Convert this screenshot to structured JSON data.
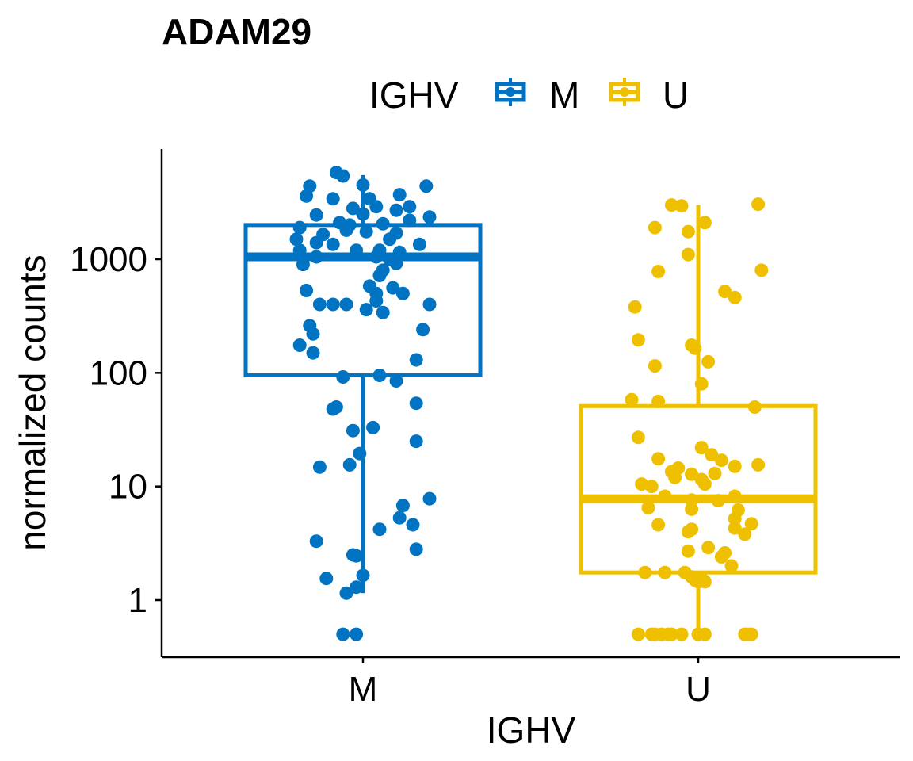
{
  "chart_data": {
    "type": "boxplot",
    "title": "ADAM29",
    "xlabel": "IGHV",
    "ylabel": "normalized counts",
    "y_scale": "log10",
    "ylim": [
      0.4,
      8000
    ],
    "y_ticks": [
      1,
      10,
      100,
      1000
    ],
    "y_tick_labels": [
      "1",
      "10",
      "100",
      "1000"
    ],
    "categories": [
      "M",
      "U"
    ],
    "legend": {
      "title": "IGHV",
      "position": "top",
      "entries": [
        "M",
        "U"
      ]
    },
    "grid": false,
    "colors": {
      "M": "#0073C2",
      "U": "#EFC000"
    },
    "boxes": [
      {
        "category": "M",
        "whisker_low": 1.15,
        "q1": 95,
        "median": 1050,
        "q3": 2000,
        "whisker_high": 5500
      },
      {
        "category": "U",
        "whisker_low": 0.5,
        "q1": 1.75,
        "median": 7.8,
        "q3": 51,
        "whisker_high": 3000
      }
    ],
    "points": {
      "M": [
        {
          "x": -0.08,
          "y": 5800
        },
        {
          "x": -0.06,
          "y": 5400
        },
        {
          "x": 0.0,
          "y": 4500
        },
        {
          "x": -0.16,
          "y": 4400
        },
        {
          "x": 0.19,
          "y": 4400
        },
        {
          "x": -0.17,
          "y": 3600
        },
        {
          "x": 0.11,
          "y": 3700
        },
        {
          "x": -0.09,
          "y": 3400
        },
        {
          "x": 0.02,
          "y": 3400
        },
        {
          "x": 0.04,
          "y": 2900
        },
        {
          "x": 0.14,
          "y": 2900
        },
        {
          "x": -0.03,
          "y": 2800
        },
        {
          "x": 0.1,
          "y": 2700
        },
        {
          "x": -0.14,
          "y": 2450
        },
        {
          "x": 0.0,
          "y": 2500
        },
        {
          "x": 0.2,
          "y": 2350
        },
        {
          "x": 0.14,
          "y": 2200
        },
        {
          "x": -0.07,
          "y": 2100
        },
        {
          "x": -0.04,
          "y": 2000
        },
        {
          "x": 0.06,
          "y": 2050
        },
        {
          "x": -0.19,
          "y": 1900
        },
        {
          "x": -0.05,
          "y": 1800
        },
        {
          "x": 0.01,
          "y": 1750
        },
        {
          "x": 0.1,
          "y": 1700
        },
        {
          "x": -0.12,
          "y": 1650
        },
        {
          "x": -0.2,
          "y": 1500
        },
        {
          "x": 0.08,
          "y": 1500
        },
        {
          "x": -0.14,
          "y": 1400
        },
        {
          "x": -0.09,
          "y": 1350
        },
        {
          "x": 0.17,
          "y": 1350
        },
        {
          "x": -0.19,
          "y": 1200
        },
        {
          "x": -0.02,
          "y": 1200
        },
        {
          "x": 0.05,
          "y": 1200
        },
        {
          "x": 0.11,
          "y": 1150
        },
        {
          "x": -0.14,
          "y": 1050
        },
        {
          "x": 0.04,
          "y": 1050
        },
        {
          "x": 0.08,
          "y": 1000
        },
        {
          "x": -0.18,
          "y": 900
        },
        {
          "x": 0.1,
          "y": 920
        },
        {
          "x": 0.06,
          "y": 800
        },
        {
          "x": 0.05,
          "y": 720
        },
        {
          "x": 0.02,
          "y": 580
        },
        {
          "x": 0.09,
          "y": 560
        },
        {
          "x": -0.17,
          "y": 530
        },
        {
          "x": 0.04,
          "y": 500
        },
        {
          "x": 0.12,
          "y": 500
        },
        {
          "x": 0.04,
          "y": 430
        },
        {
          "x": -0.13,
          "y": 400
        },
        {
          "x": -0.09,
          "y": 400
        },
        {
          "x": -0.05,
          "y": 400
        },
        {
          "x": 0.2,
          "y": 400
        },
        {
          "x": 0.01,
          "y": 360
        },
        {
          "x": 0.06,
          "y": 340
        },
        {
          "x": -0.16,
          "y": 260
        },
        {
          "x": 0.18,
          "y": 240
        },
        {
          "x": -0.15,
          "y": 220
        },
        {
          "x": -0.19,
          "y": 175
        },
        {
          "x": -0.15,
          "y": 150
        },
        {
          "x": 0.16,
          "y": 130
        },
        {
          "x": 0.05,
          "y": 95
        },
        {
          "x": -0.06,
          "y": 92
        },
        {
          "x": 0.1,
          "y": 85
        },
        {
          "x": 0.16,
          "y": 54
        },
        {
          "x": -0.08,
          "y": 50
        },
        {
          "x": -0.09,
          "y": 48
        },
        {
          "x": 0.03,
          "y": 33
        },
        {
          "x": -0.03,
          "y": 31
        },
        {
          "x": 0.16,
          "y": 25
        },
        {
          "x": -0.01,
          "y": 19.5
        },
        {
          "x": -0.04,
          "y": 15.5
        },
        {
          "x": -0.13,
          "y": 14.8
        },
        {
          "x": 0.2,
          "y": 7.8
        },
        {
          "x": 0.12,
          "y": 6.8
        },
        {
          "x": 0.11,
          "y": 5.3
        },
        {
          "x": 0.15,
          "y": 4.6
        },
        {
          "x": 0.05,
          "y": 4.2
        },
        {
          "x": -0.14,
          "y": 3.3
        },
        {
          "x": 0.16,
          "y": 2.8
        },
        {
          "x": -0.03,
          "y": 2.5
        },
        {
          "x": -0.02,
          "y": 2.45
        },
        {
          "x": 0.0,
          "y": 1.65
        },
        {
          "x": -0.11,
          "y": 1.55
        },
        {
          "x": -0.02,
          "y": 1.3
        },
        {
          "x": -0.05,
          "y": 1.15
        },
        {
          "x": -0.06,
          "y": 0.5
        },
        {
          "x": -0.02,
          "y": 0.5
        }
      ],
      "U": [
        {
          "x": 0.18,
          "y": 3050
        },
        {
          "x": -0.08,
          "y": 3000
        },
        {
          "x": -0.05,
          "y": 2950
        },
        {
          "x": 0.02,
          "y": 2100
        },
        {
          "x": -0.13,
          "y": 1900
        },
        {
          "x": -0.03,
          "y": 1750
        },
        {
          "x": -0.03,
          "y": 1100
        },
        {
          "x": 0.19,
          "y": 800
        },
        {
          "x": -0.12,
          "y": 780
        },
        {
          "x": 0.08,
          "y": 520
        },
        {
          "x": 0.11,
          "y": 460
        },
        {
          "x": -0.19,
          "y": 380
        },
        {
          "x": -0.18,
          "y": 195
        },
        {
          "x": -0.02,
          "y": 175
        },
        {
          "x": -0.01,
          "y": 165
        },
        {
          "x": 0.03,
          "y": 125
        },
        {
          "x": -0.13,
          "y": 115
        },
        {
          "x": 0.01,
          "y": 80
        },
        {
          "x": -0.2,
          "y": 58
        },
        {
          "x": -0.12,
          "y": 56
        },
        {
          "x": 0.17,
          "y": 50
        },
        {
          "x": -0.18,
          "y": 27
        },
        {
          "x": 0.01,
          "y": 22
        },
        {
          "x": 0.04,
          "y": 19
        },
        {
          "x": -0.12,
          "y": 17.5
        },
        {
          "x": 0.07,
          "y": 17
        },
        {
          "x": -0.06,
          "y": 14.5
        },
        {
          "x": 0.11,
          "y": 15
        },
        {
          "x": 0.18,
          "y": 15.5
        },
        {
          "x": -0.08,
          "y": 13.5
        },
        {
          "x": -0.02,
          "y": 12.8
        },
        {
          "x": 0.05,
          "y": 13
        },
        {
          "x": -0.07,
          "y": 12
        },
        {
          "x": 0.01,
          "y": 11.5
        },
        {
          "x": -0.17,
          "y": 10.5
        },
        {
          "x": -0.14,
          "y": 10
        },
        {
          "x": 0.02,
          "y": 10.5
        },
        {
          "x": -0.1,
          "y": 8.2
        },
        {
          "x": 0.11,
          "y": 8.2
        },
        {
          "x": 0.06,
          "y": 7.5
        },
        {
          "x": -0.02,
          "y": 7.6
        },
        {
          "x": -0.15,
          "y": 6.5
        },
        {
          "x": -0.02,
          "y": 6.3
        },
        {
          "x": 0.12,
          "y": 6.2
        },
        {
          "x": 0.11,
          "y": 5.2
        },
        {
          "x": 0.16,
          "y": 4.7
        },
        {
          "x": -0.12,
          "y": 4.6
        },
        {
          "x": 0.11,
          "y": 4.3
        },
        {
          "x": -0.03,
          "y": 4
        },
        {
          "x": -0.02,
          "y": 4.2
        },
        {
          "x": 0.14,
          "y": 3.8
        },
        {
          "x": 0.03,
          "y": 2.9
        },
        {
          "x": -0.03,
          "y": 2.7
        },
        {
          "x": 0.08,
          "y": 2.6
        },
        {
          "x": 0.07,
          "y": 2.4
        },
        {
          "x": 0.1,
          "y": 2.0
        },
        {
          "x": -0.16,
          "y": 1.75
        },
        {
          "x": -0.1,
          "y": 1.75
        },
        {
          "x": -0.04,
          "y": 1.75
        },
        {
          "x": -0.02,
          "y": 1.6
        },
        {
          "x": -0.01,
          "y": 1.5
        },
        {
          "x": 0.02,
          "y": 1.45
        },
        {
          "x": 0.0,
          "y": 1.45
        },
        {
          "x": 0.01,
          "y": 1.55
        },
        {
          "x": -0.18,
          "y": 0.5
        },
        {
          "x": -0.14,
          "y": 0.5
        },
        {
          "x": -0.13,
          "y": 0.5
        },
        {
          "x": -0.11,
          "y": 0.5
        },
        {
          "x": -0.09,
          "y": 0.5
        },
        {
          "x": -0.08,
          "y": 0.5
        },
        {
          "x": -0.05,
          "y": 0.5
        },
        {
          "x": 0.0,
          "y": 0.5
        },
        {
          "x": 0.02,
          "y": 0.5
        },
        {
          "x": 0.14,
          "y": 0.5
        },
        {
          "x": 0.15,
          "y": 0.5
        },
        {
          "x": 0.16,
          "y": 0.5
        }
      ]
    }
  }
}
